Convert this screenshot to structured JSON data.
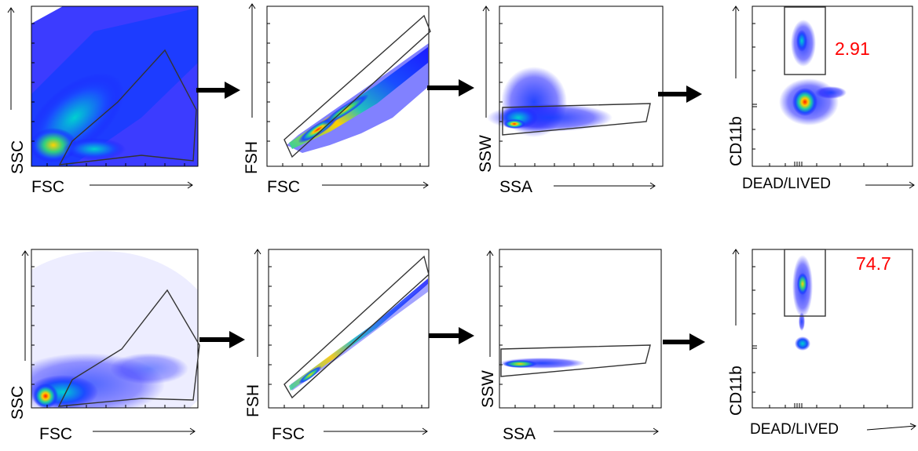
{
  "rows": [
    {
      "id": "top",
      "panels": [
        {
          "id": "fsc-ssc",
          "xlabel": "FSC",
          "ylabel": "SSC"
        },
        {
          "id": "fsc-fsh",
          "xlabel": "FSC",
          "ylabel": "FSH"
        },
        {
          "id": "ssa-ssw",
          "xlabel": "SSA",
          "ylabel": "SSW"
        },
        {
          "id": "live-cd11b",
          "xlabel": "DEAD/LIVED",
          "ylabel": "CD11b",
          "percent": "2.91"
        }
      ]
    },
    {
      "id": "bottom",
      "panels": [
        {
          "id": "fsc-ssc",
          "xlabel": "FSC",
          "ylabel": "SSC"
        },
        {
          "id": "fsc-fsh",
          "xlabel": "FSC",
          "ylabel": "FSH"
        },
        {
          "id": "ssa-ssw",
          "xlabel": "SSA",
          "ylabel": "SSW"
        },
        {
          "id": "live-cd11b",
          "xlabel": "DEAD/LIVED",
          "ylabel": "CD11b",
          "percent": "74.7"
        }
      ]
    }
  ],
  "colors": {
    "density_low": "#1a1aff",
    "density_mid": "#00c8c8",
    "density_high": "#ffe000",
    "density_peak": "#ff2000",
    "gate": "#333333",
    "percent": "#ff0000"
  }
}
